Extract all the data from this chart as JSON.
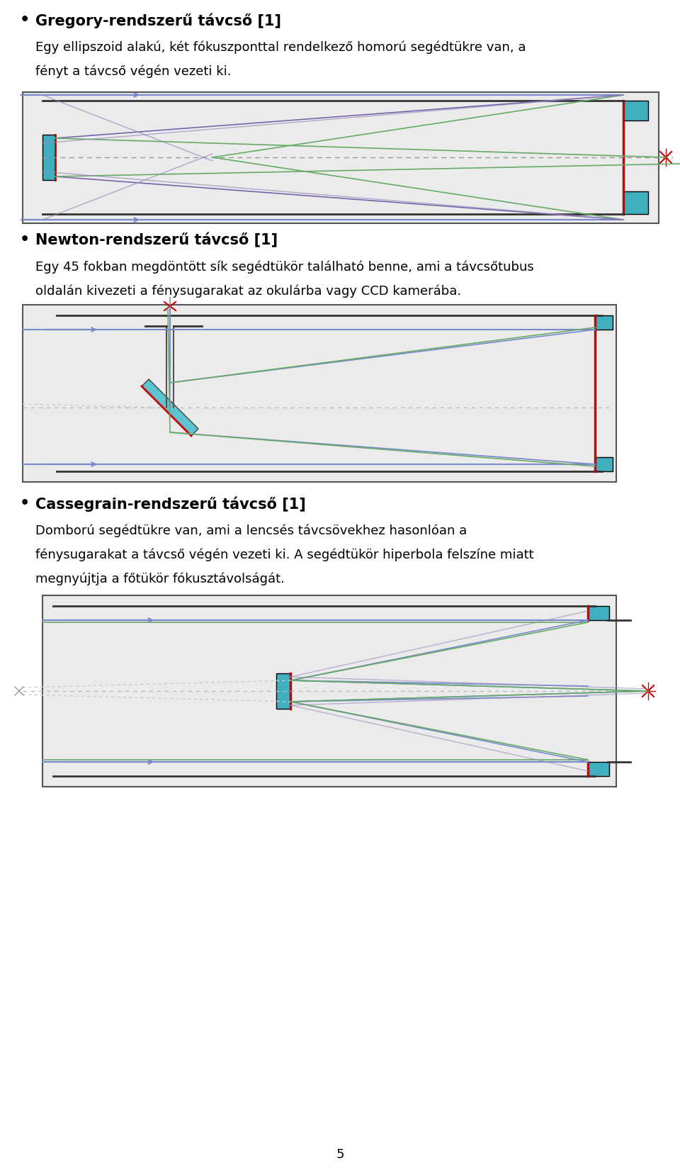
{
  "page_bg": "#ffffff",
  "text_color": "#000000",
  "diagram_bg": "#e8e8e8",
  "cyan_color": "#40b0c0",
  "red_color": "#cc0000",
  "dark_line": "#222222",
  "blue_line": "#5566aa",
  "green_line": "#66aa66",
  "gray_line": "#888888",
  "dashed_line": "#aaaaaa",
  "title1": "Gregory-rendszerű távcső [1]",
  "text1a": "Egy ellipszoid alakú, két fókuszponttal rendelkező homorú segédtükre van, a",
  "text1b": "fényt a távcső végén vezeti ki.",
  "title2": "Newton-rendszerű távcső [1]",
  "text2a": "Egy 45 fokban megdöntött sík segédtükör található benne, ami a távcsőtubus",
  "text2b": "oldalán kivezeti a fénysugarakat az okulárba vagy CCD kamerába.",
  "title3": "Cassegrain-rendszerű távcső [1]",
  "text3a": "Domború segédtükre van, ami a lencsés távcsövekhez hasonlóan a",
  "text3b": "fénysugarakat a távcső végén vezeti ki. A segédtükör hiperbola felszíne miatt",
  "text3c": "megnyújtja a főtükör fókusztávolságát.",
  "page_number": "5"
}
